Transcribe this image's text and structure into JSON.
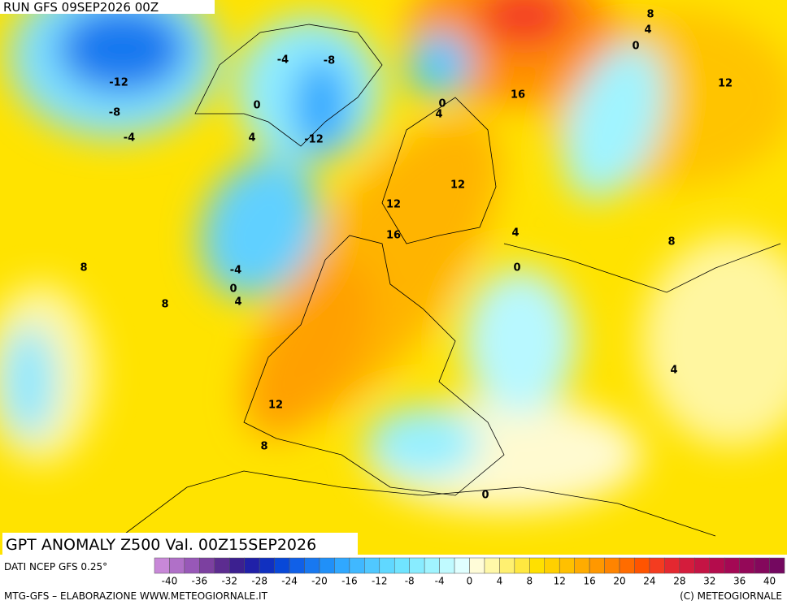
{
  "header": {
    "run": "RUN GFS 09SEP2026 00Z"
  },
  "map": {
    "title": "GPT ANOMALY Z500 Val. 00Z15SEP2026",
    "contour_labels": [
      "-12",
      "-8",
      "-4",
      "-4",
      "-8",
      "0",
      "4",
      "-12",
      "8",
      "4",
      "0",
      "12",
      "16",
      "0",
      "4",
      "12",
      "12",
      "16",
      "4",
      "0",
      "8",
      "8",
      "-4",
      "0",
      "4",
      "8",
      "4",
      "12",
      "8",
      "0"
    ]
  },
  "colorbar": {
    "source": "DATI NCEP GFS 0.25°",
    "labels": [
      "-40",
      "-36",
      "-32",
      "-28",
      "-24",
      "-20",
      "-16",
      "-12",
      "-8",
      "-4",
      "0",
      "4",
      "8",
      "12",
      "16",
      "20",
      "24",
      "28",
      "32",
      "36",
      "40"
    ],
    "colors": [
      "#c888d8",
      "#b070c8",
      "#9858b8",
      "#7c40a0",
      "#5c2c90",
      "#3c2090",
      "#2020a8",
      "#1030c0",
      "#0848d8",
      "#1060e8",
      "#1878f0",
      "#2090f8",
      "#30a8ff",
      "#40b8ff",
      "#50c8ff",
      "#60d8ff",
      "#70e4ff",
      "#88ecff",
      "#a0f4ff",
      "#c0faff",
      "#e0ffff",
      "#fffcd8",
      "#fff8a8",
      "#fff070",
      "#ffe840",
      "#ffe000",
      "#ffd000",
      "#ffc000",
      "#ffac00",
      "#ff9800",
      "#ff8400",
      "#ff6c00",
      "#ff5400",
      "#f43c20",
      "#e42830",
      "#d41c3c",
      "#c41444",
      "#b40c4c",
      "#a40854",
      "#940858",
      "#84085c",
      "#740860"
    ]
  },
  "footer": {
    "left": "MTG-GFS – ELABORAZIONE WWW.METEOGIORNALE.IT",
    "right": "(C) METEOGIORNALE"
  }
}
